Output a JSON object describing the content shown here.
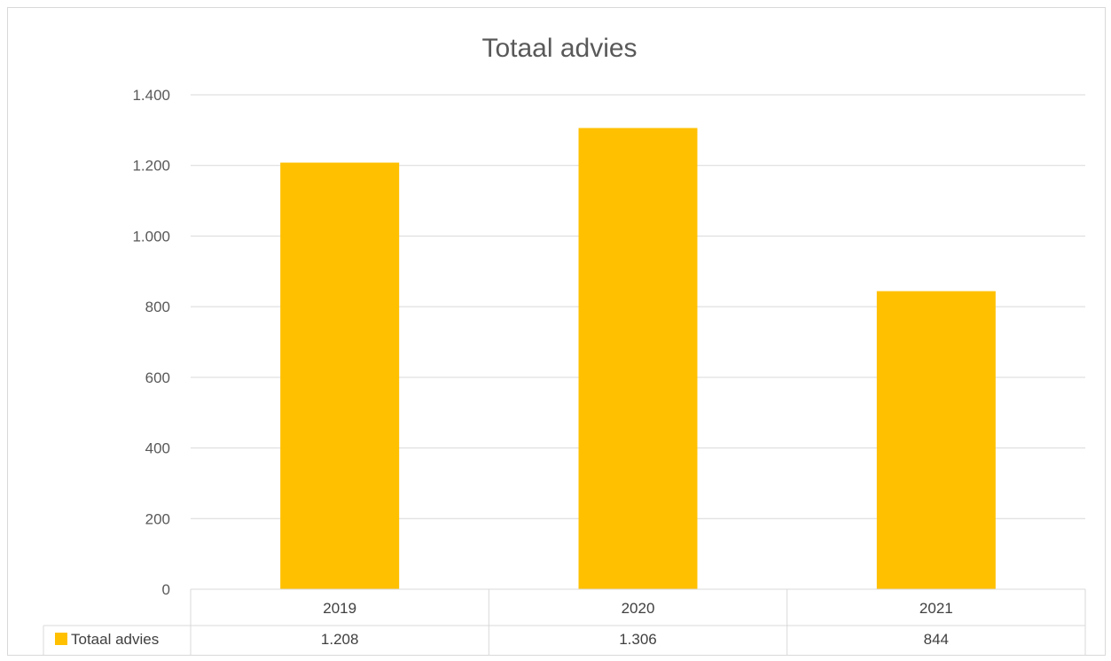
{
  "chart_data": {
    "type": "bar",
    "title": "Totaal advies",
    "categories": [
      "2019",
      "2020",
      "2021"
    ],
    "series": [
      {
        "name": "Totaal advies",
        "values": [
          1208,
          1306,
          844
        ],
        "value_labels": [
          "1.208",
          "1.306",
          "844"
        ],
        "color": "#FFC000"
      }
    ],
    "ylim": [
      0,
      1400
    ],
    "yticks": [
      0,
      200,
      400,
      600,
      800,
      1000,
      1200,
      1400
    ],
    "ytick_labels": [
      "0",
      "200",
      "400",
      "600",
      "800",
      "1.000",
      "1.200",
      "1.400"
    ],
    "grid": true,
    "legend": "data-table-bottom",
    "xlabel": "",
    "ylabel": ""
  }
}
